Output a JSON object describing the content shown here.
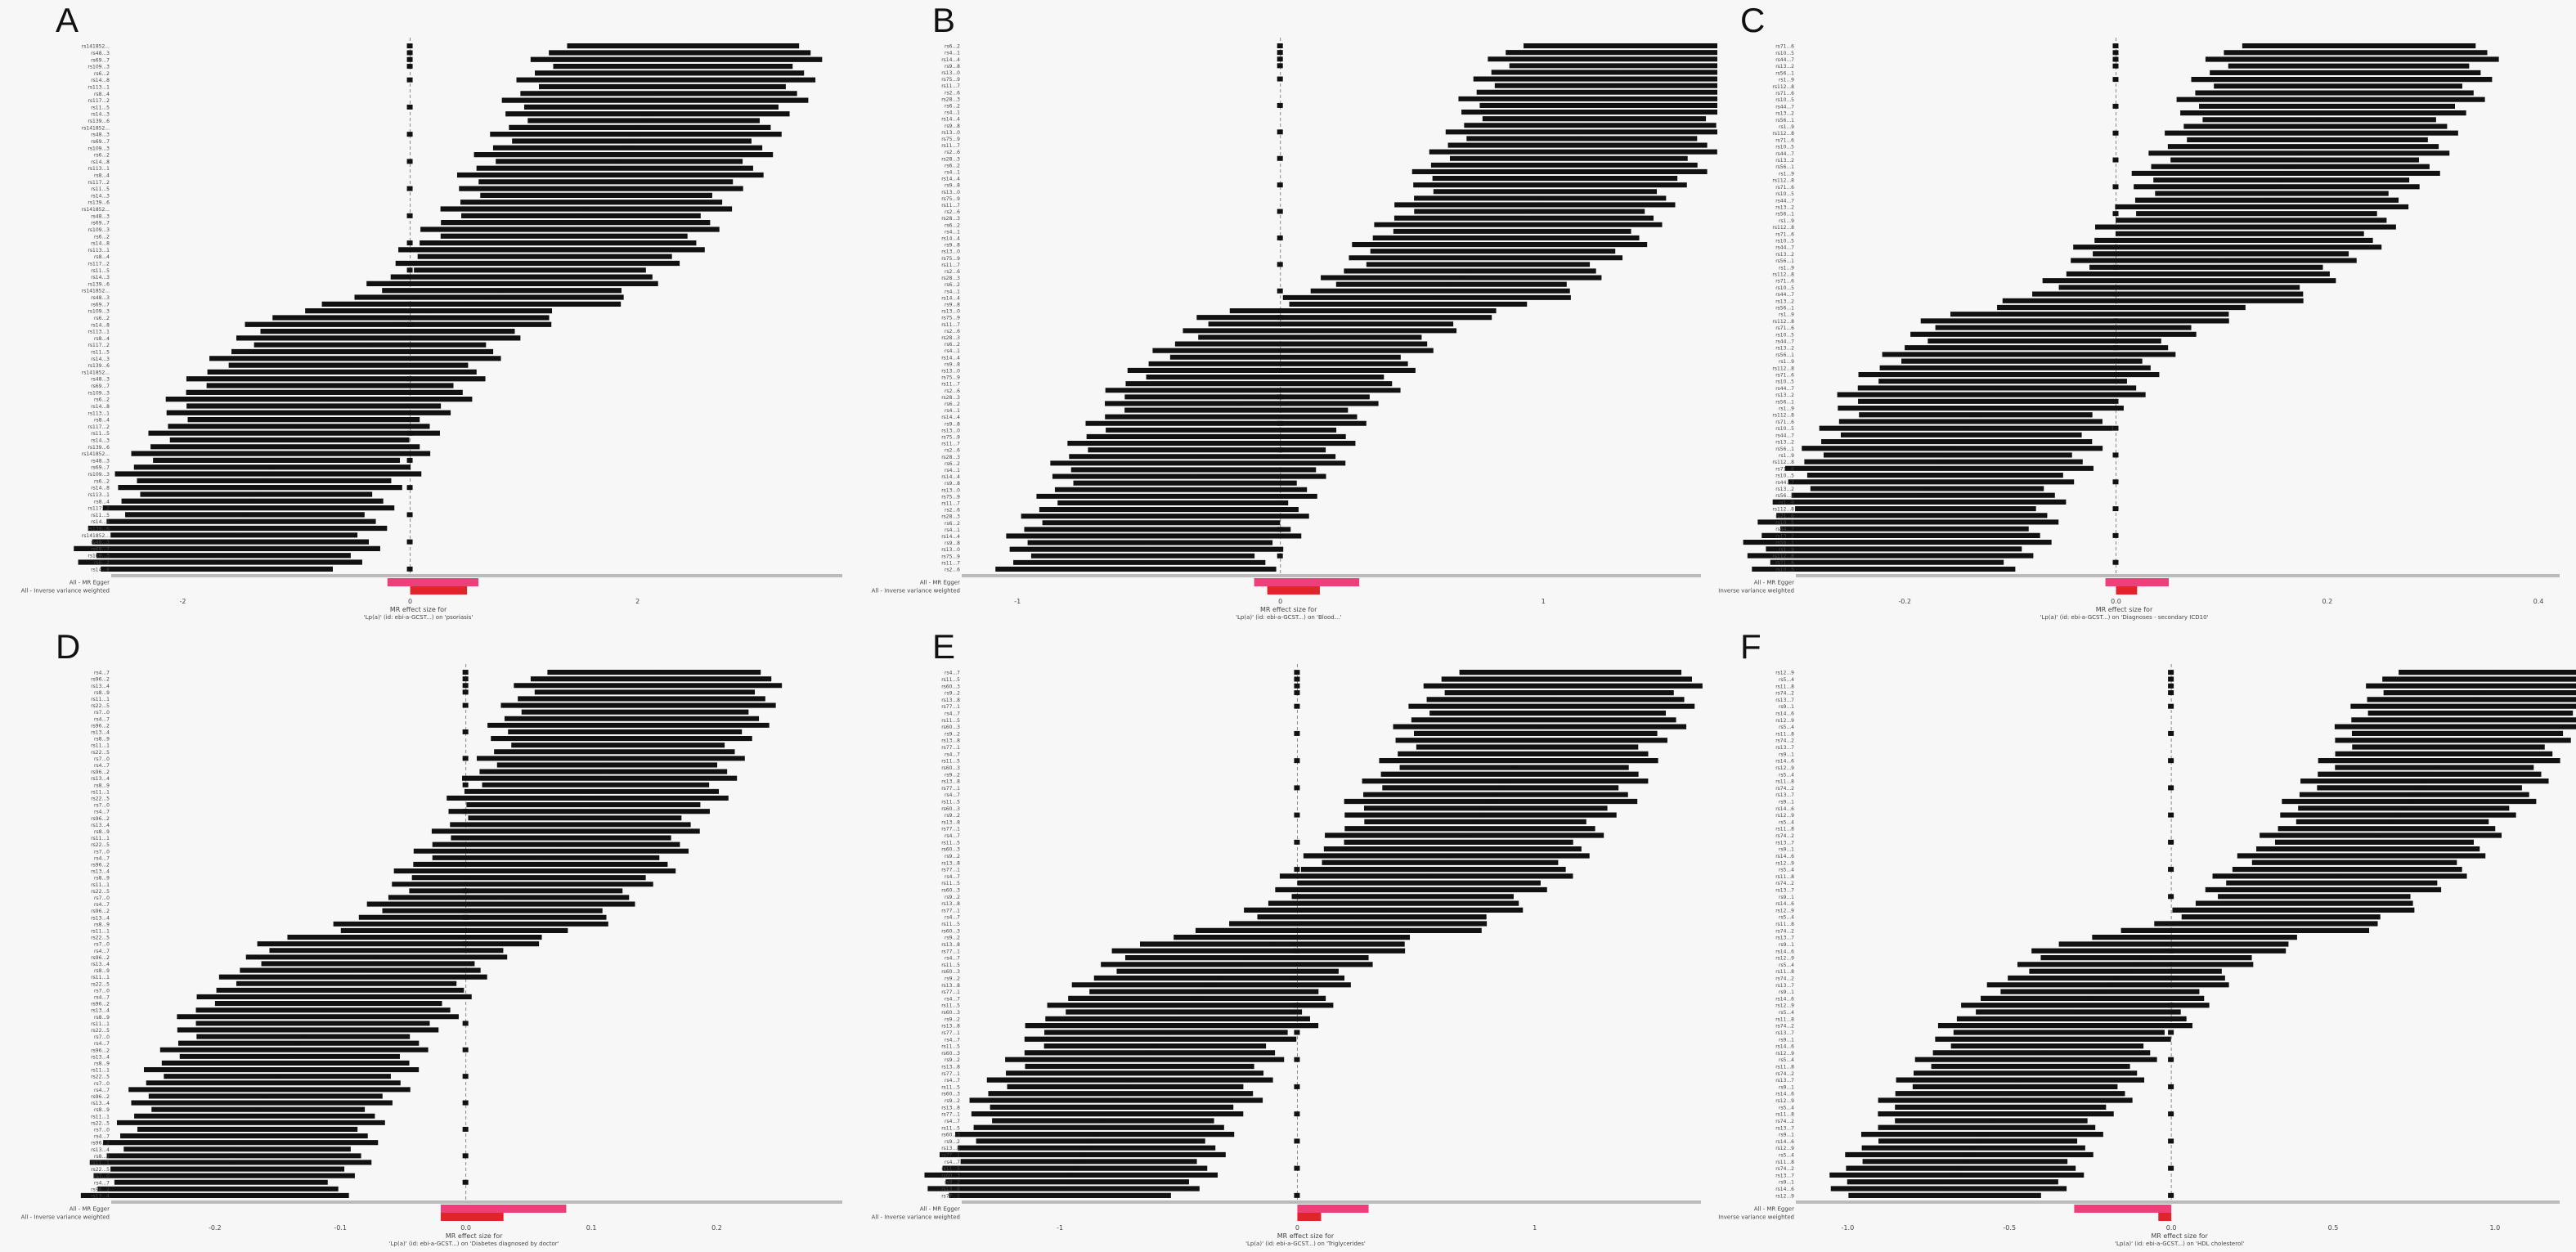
{
  "figure": {
    "background": "#f7f7f7"
  },
  "colors": {
    "line": "#111111",
    "axis": "#bbbbbb",
    "ivw": "#e0242a",
    "egger": "#ec407a",
    "text": "#444444"
  },
  "chart_data": [
    {
      "panel": "A",
      "type": "forest",
      "xlabel": "MR effect size for",
      "subtitle": "'Lp(a)' (id: ebi-a-GCST...) on 'psoriasis'",
      "xticks": [
        -2,
        0,
        2
      ],
      "xlim": [
        -2.6,
        3.8
      ],
      "method_labels": [
        "All - MR Egger",
        "All - Inverse variance weighted"
      ],
      "ivw": {
        "b": 0.25,
        "lo": 0.0,
        "hi": 0.5
      },
      "egger": {
        "b": 0.2,
        "lo": -0.2,
        "hi": 0.6
      },
      "snps": [
        "rs141852...",
        "rs48...3",
        "rs69...7",
        "rs109...3",
        "rs6...2",
        "rs14...8",
        "rs113...1",
        "rs8...4",
        "rs117...2",
        "rs11...5",
        "rs14...3",
        "rs139...6"
      ],
      "snp_stats": {
        "n": 78,
        "b_min": -1.7,
        "b_max": 2.4,
        "half_ci": 1.2,
        "square_every": 4
      }
    },
    {
      "panel": "B",
      "type": "forest",
      "xlabel": "MR effect size for",
      "subtitle": "'Lp(a)' (id: ebi-a-GCST...) on 'Blood...'",
      "xticks": [
        -1,
        0,
        1
      ],
      "xlim": [
        -1.2,
        1.6
      ],
      "method_labels": [
        "All - MR Egger",
        "All - Inverse variance weighted"
      ],
      "ivw": {
        "b": 0.05,
        "lo": -0.05,
        "hi": 0.15
      },
      "egger": {
        "b": 0.1,
        "lo": -0.1,
        "hi": 0.3
      },
      "snps": [
        "rs6...2",
        "rs4...1",
        "rs14...4",
        "rs9...8",
        "rs13...0",
        "rs75...9",
        "rs11...7",
        "rs2...6",
        "rs28...3"
      ],
      "snp_stats": {
        "n": 80,
        "b_min": -0.55,
        "b_max": 1.35,
        "half_ci": 0.5,
        "square_every": 4
      }
    },
    {
      "panel": "C",
      "type": "forest",
      "xlabel": "MR effect size for",
      "subtitle": "'Lp(a)' (id: ebi-a-GCST...) on 'Diagnoses - secondary ICD10'",
      "xticks": [
        -0.2,
        0.0,
        0.2,
        0.4
      ],
      "xlim": [
        -0.3,
        0.42
      ],
      "method_labels": [
        "All - MR Egger",
        "All - Inverse variance weighted"
      ],
      "ivw": {
        "b": 0.01,
        "lo": 0.0,
        "hi": 0.02
      },
      "egger": {
        "b": 0.02,
        "lo": -0.01,
        "hi": 0.05
      },
      "snps": [
        "rs71...6",
        "rs10...5",
        "rs44...7",
        "rs13...2",
        "rs56...1",
        "rs1...9",
        "rs112...8"
      ],
      "snp_stats": {
        "n": 79,
        "b_min": -0.22,
        "b_max": 0.23,
        "half_ci": 0.13,
        "square_every": 4
      }
    },
    {
      "panel": "D",
      "type": "forest",
      "xlabel": "MR effect size for",
      "subtitle": "'Lp(a)' (id: ebi-a-GCST...) on 'Diabetes diagnosed by doctor'",
      "xticks": [
        -0.2,
        -0.1,
        0.0,
        0.1,
        0.2
      ],
      "xlim": [
        -0.28,
        0.3
      ],
      "method_labels": [
        "All - MR Egger",
        "All - Inverse variance weighted"
      ],
      "ivw": {
        "b": 0.01,
        "lo": -0.02,
        "hi": 0.03
      },
      "egger": {
        "b": 0.03,
        "lo": -0.02,
        "hi": 0.08
      },
      "snps": [
        "rs4...7",
        "rs96...2",
        "rs13...4",
        "rs8...9",
        "rs11...1",
        "rs22...5",
        "rs7...0"
      ],
      "snp_stats": {
        "n": 80,
        "b_min": -0.2,
        "b_max": 0.15,
        "half_ci": 0.1,
        "square_every": 4
      }
    },
    {
      "panel": "E",
      "type": "forest",
      "xlabel": "MR effect size for",
      "subtitle": "'Lp(a)' (id: ebi-a-GCST...) on 'Triglycerides'",
      "xticks": [
        -1,
        0,
        1
      ],
      "xlim": [
        -1.4,
        1.7
      ],
      "method_labels": [
        "All - MR Egger",
        "All - Inverse variance weighted"
      ],
      "ivw": {
        "b": 0.05,
        "lo": 0.0,
        "hi": 0.1
      },
      "egger": {
        "b": 0.15,
        "lo": 0.0,
        "hi": 0.3
      },
      "snps": [
        "rs4...7",
        "rs11...5",
        "rs60...3",
        "rs9...2",
        "rs13...8",
        "rs77...1"
      ],
      "snp_stats": {
        "n": 78,
        "b_min": -1.0,
        "b_max": 1.15,
        "half_ci": 0.55,
        "square_every": 4
      }
    },
    {
      "panel": "F",
      "type": "forest",
      "xlabel": "MR effect size for",
      "subtitle": "'Lp(a)' (id: ebi-a-GCST...) on 'HDL cholesterol'",
      "xticks": [
        -1.0,
        -0.5,
        0.0,
        0.5,
        1.0
      ],
      "xlim": [
        -1.15,
        1.2
      ],
      "method_labels": [
        "All - MR Egger",
        "All - Inverse variance weighted"
      ],
      "ivw": {
        "b": -0.02,
        "lo": -0.04,
        "hi": 0.0
      },
      "egger": {
        "b": -0.15,
        "lo": -0.3,
        "hi": 0.0
      },
      "snps": [
        "rs12...9",
        "rs5...4",
        "rs11...8",
        "rs74...2",
        "rs13...7",
        "rs9...1",
        "rs14...6"
      ],
      "snp_stats": {
        "n": 78,
        "b_min": -0.7,
        "b_max": 1.0,
        "half_ci": 0.35,
        "square_every": 4
      }
    }
  ]
}
